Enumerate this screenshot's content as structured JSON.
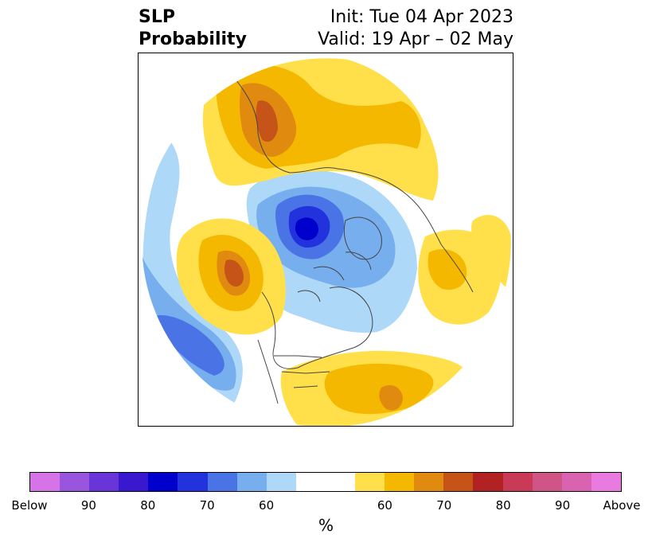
{
  "title": {
    "left_line1": "SLP",
    "left_line2": "Probability",
    "right_line1": "Init: Tue 04 Apr 2023",
    "right_line2": "Valid: 19 Apr – 02 May"
  },
  "colorbar": {
    "colors": [
      "#d673e6",
      "#9a55de",
      "#6a35d8",
      "#3a18d0",
      "#0000cc",
      "#2233dd",
      "#4a74e6",
      "#76aeee",
      "#aed8f8",
      "#ffffff",
      "#ffffff",
      "#ffe04a",
      "#f5b800",
      "#e08b10",
      "#c65418",
      "#b32222",
      "#c83a56",
      "#cf5587",
      "#d962b1",
      "#e87ae0"
    ],
    "tick_labels": [
      "Below",
      "90",
      "80",
      "70",
      "60",
      "60",
      "70",
      "80",
      "90",
      "Above"
    ],
    "unit_label": "%"
  },
  "map": {
    "projection": "north-polar-stereographic",
    "category_colors": {
      "below_50_60": "#aed8f8",
      "below_60_70": "#76aeee",
      "below_70_80": "#4a74e6",
      "below_80_90": "#2233dd",
      "below_90_100": "#0000cc",
      "above_50_60": "#ffe04a",
      "above_60_70": "#f5b800",
      "above_70_80": "#e08b10",
      "above_80_90": "#c65418",
      "border": "#444444"
    }
  }
}
